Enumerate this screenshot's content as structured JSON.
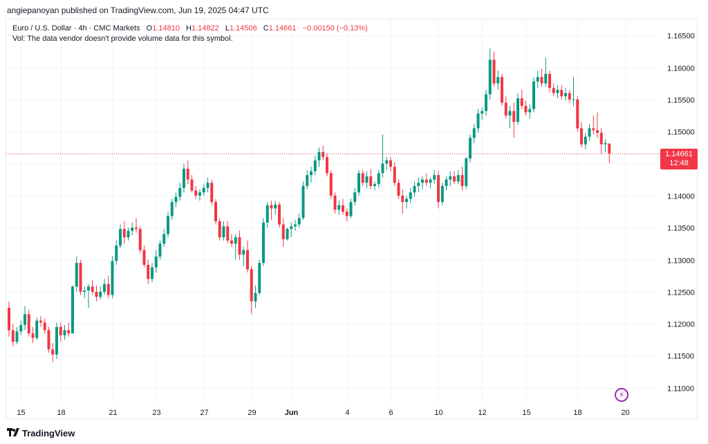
{
  "header": {
    "publisher_line": "angiepanoyan published on TradingView.com, Jun 19, 2025 04:47 UTC"
  },
  "legend": {
    "symbol": "Euro / U.S. Dollar · 4h · CMC Markets",
    "o_label": "O",
    "o_value": "1.14810",
    "h_label": "H",
    "h_value": "1.14822",
    "l_label": "L",
    "l_value": "1.14506",
    "c_label": "C",
    "c_value": "1.14661",
    "change": "−0.00150 (−0.13%)",
    "vol_line": "Vol: The data vendor doesn't provide volume data for this symbol."
  },
  "price_badge": {
    "price": "1.14661",
    "countdown": "12:48"
  },
  "brand": {
    "name": "TradingView"
  },
  "colors": {
    "up": "#089981",
    "down": "#f23645",
    "grid": "#f0f3fa",
    "accent_bolt": "#9c27b0"
  },
  "icons": {
    "bolt": "lightning-icon",
    "logo": "tradingview-logo-icon"
  },
  "chart_data": {
    "type": "candlestick",
    "timeframe": "4h",
    "current_price": 1.14661,
    "ylim": [
      1.1075,
      1.1675
    ],
    "y_ticks": [
      "1.16500",
      "1.16000",
      "1.15500",
      "1.15000",
      "1.14500",
      "1.14000",
      "1.13500",
      "1.13000",
      "1.12500",
      "1.12000",
      "1.11500",
      "1.11000"
    ],
    "x_ticks": [
      {
        "label": "15",
        "idx": 3
      },
      {
        "label": "18",
        "idx": 13
      },
      {
        "label": "21",
        "idx": 26
      },
      {
        "label": "23",
        "idx": 37
      },
      {
        "label": "27",
        "idx": 49
      },
      {
        "label": "29",
        "idx": 61
      },
      {
        "label": "Jun",
        "idx": 71
      },
      {
        "label": "4",
        "idx": 85
      },
      {
        "label": "6",
        "idx": 96
      },
      {
        "label": "10",
        "idx": 108
      },
      {
        "label": "12",
        "idx": 119
      },
      {
        "label": "15",
        "idx": 130
      },
      {
        "label": "18",
        "idx": 143
      },
      {
        "label": "20",
        "idx": 155
      }
    ],
    "grid": true,
    "candles": [
      [
        1.1225,
        1.1235,
        1.118,
        1.119
      ],
      [
        1.119,
        1.12,
        1.1165,
        1.1172
      ],
      [
        1.1172,
        1.1195,
        1.1168,
        1.1188
      ],
      [
        1.1188,
        1.1205,
        1.1182,
        1.1198
      ],
      [
        1.1198,
        1.1228,
        1.119,
        1.1215
      ],
      [
        1.1215,
        1.1222,
        1.118,
        1.1185
      ],
      [
        1.1185,
        1.1195,
        1.117,
        1.1178
      ],
      [
        1.1178,
        1.121,
        1.1175,
        1.1205
      ],
      [
        1.1205,
        1.1212,
        1.1195,
        1.1202
      ],
      [
        1.1202,
        1.1208,
        1.1185,
        1.119
      ],
      [
        1.119,
        1.1195,
        1.1155,
        1.116
      ],
      [
        1.116,
        1.117,
        1.114,
        1.1152
      ],
      [
        1.1152,
        1.1202,
        1.1145,
        1.1195
      ],
      [
        1.1195,
        1.1202,
        1.1172,
        1.1182
      ],
      [
        1.1182,
        1.1198,
        1.1175,
        1.119
      ],
      [
        1.119,
        1.1202,
        1.118,
        1.1185
      ],
      [
        1.1185,
        1.126,
        1.1185,
        1.1258
      ],
      [
        1.1258,
        1.1305,
        1.125,
        1.1295
      ],
      [
        1.1295,
        1.13,
        1.1245,
        1.125
      ],
      [
        1.125,
        1.1258,
        1.124,
        1.1252
      ],
      [
        1.1252,
        1.1262,
        1.1225,
        1.1258
      ],
      [
        1.1258,
        1.1268,
        1.1245,
        1.125
      ],
      [
        1.125,
        1.126,
        1.1235,
        1.1242
      ],
      [
        1.1242,
        1.1258,
        1.1238,
        1.125
      ],
      [
        1.125,
        1.127,
        1.1245,
        1.1262
      ],
      [
        1.1262,
        1.1275,
        1.124,
        1.1245
      ],
      [
        1.1245,
        1.1305,
        1.124,
        1.1298
      ],
      [
        1.1298,
        1.133,
        1.1292,
        1.1322
      ],
      [
        1.1322,
        1.1355,
        1.1318,
        1.1348
      ],
      [
        1.1348,
        1.136,
        1.1325,
        1.1335
      ],
      [
        1.1335,
        1.135,
        1.133,
        1.1345
      ],
      [
        1.1345,
        1.1358,
        1.1338,
        1.135
      ],
      [
        1.135,
        1.1365,
        1.1342,
        1.1348
      ],
      [
        1.1348,
        1.1352,
        1.131,
        1.1315
      ],
      [
        1.1315,
        1.1322,
        1.1288,
        1.1292
      ],
      [
        1.1292,
        1.13,
        1.1262,
        1.127
      ],
      [
        1.127,
        1.1295,
        1.1265,
        1.1288
      ],
      [
        1.1288,
        1.1315,
        1.128,
        1.1305
      ],
      [
        1.1305,
        1.133,
        1.13,
        1.1325
      ],
      [
        1.1325,
        1.1348,
        1.132,
        1.134
      ],
      [
        1.134,
        1.1375,
        1.1335,
        1.1368
      ],
      [
        1.1368,
        1.1395,
        1.1362,
        1.139
      ],
      [
        1.139,
        1.1405,
        1.1382,
        1.1398
      ],
      [
        1.1398,
        1.142,
        1.1392,
        1.1412
      ],
      [
        1.1412,
        1.145,
        1.1405,
        1.1442
      ],
      [
        1.1442,
        1.1455,
        1.1418,
        1.1425
      ],
      [
        1.1425,
        1.1432,
        1.1405,
        1.1408
      ],
      [
        1.1408,
        1.1415,
        1.1395,
        1.14
      ],
      [
        1.14,
        1.141,
        1.1392,
        1.1405
      ],
      [
        1.1405,
        1.1418,
        1.14,
        1.1412
      ],
      [
        1.1412,
        1.1428,
        1.1405,
        1.142
      ],
      [
        1.142,
        1.1425,
        1.1385,
        1.139
      ],
      [
        1.139,
        1.1395,
        1.1355,
        1.136
      ],
      [
        1.136,
        1.1365,
        1.133,
        1.1335
      ],
      [
        1.1335,
        1.136,
        1.133,
        1.1352
      ],
      [
        1.1352,
        1.136,
        1.1325,
        1.133
      ],
      [
        1.133,
        1.134,
        1.132,
        1.1325
      ],
      [
        1.1325,
        1.134,
        1.13,
        1.1335
      ],
      [
        1.1335,
        1.1345,
        1.13,
        1.1308
      ],
      [
        1.1308,
        1.132,
        1.129,
        1.1315
      ],
      [
        1.1315,
        1.133,
        1.128,
        1.1285
      ],
      [
        1.1285,
        1.129,
        1.1215,
        1.1235
      ],
      [
        1.1235,
        1.126,
        1.1225,
        1.1248
      ],
      [
        1.1248,
        1.13,
        1.1245,
        1.1295
      ],
      [
        1.1295,
        1.1365,
        1.129,
        1.1358
      ],
      [
        1.1358,
        1.139,
        1.135,
        1.1385
      ],
      [
        1.1385,
        1.1392,
        1.1362,
        1.138
      ],
      [
        1.138,
        1.1392,
        1.137,
        1.1386
      ],
      [
        1.1386,
        1.139,
        1.135,
        1.1355
      ],
      [
        1.1355,
        1.1365,
        1.132,
        1.1332
      ],
      [
        1.1332,
        1.135,
        1.133,
        1.1348
      ],
      [
        1.1348,
        1.1358,
        1.1335,
        1.1352
      ],
      [
        1.1352,
        1.1362,
        1.1345,
        1.1355
      ],
      [
        1.1355,
        1.1372,
        1.135,
        1.1365
      ],
      [
        1.1365,
        1.1422,
        1.1362,
        1.1415
      ],
      [
        1.1415,
        1.144,
        1.141,
        1.1432
      ],
      [
        1.1432,
        1.1445,
        1.142,
        1.1438
      ],
      [
        1.1438,
        1.1462,
        1.1432,
        1.1455
      ],
      [
        1.1455,
        1.1475,
        1.1445,
        1.1468
      ],
      [
        1.1468,
        1.1478,
        1.1455,
        1.146
      ],
      [
        1.146,
        1.1465,
        1.143,
        1.1435
      ],
      [
        1.1435,
        1.144,
        1.1395,
        1.14
      ],
      [
        1.14,
        1.1405,
        1.1372,
        1.1378
      ],
      [
        1.1378,
        1.1392,
        1.137,
        1.1385
      ],
      [
        1.1385,
        1.1395,
        1.137,
        1.1375
      ],
      [
        1.1375,
        1.138,
        1.136,
        1.1368
      ],
      [
        1.1368,
        1.1395,
        1.1365,
        1.139
      ],
      [
        1.139,
        1.1412,
        1.1385,
        1.1405
      ],
      [
        1.1405,
        1.144,
        1.14,
        1.1435
      ],
      [
        1.1435,
        1.144,
        1.1415,
        1.142
      ],
      [
        1.142,
        1.1438,
        1.1412,
        1.143
      ],
      [
        1.143,
        1.1442,
        1.141,
        1.1415
      ],
      [
        1.1415,
        1.1422,
        1.1408,
        1.1418
      ],
      [
        1.1418,
        1.144,
        1.1412,
        1.1435
      ],
      [
        1.1435,
        1.1495,
        1.1428,
        1.145
      ],
      [
        1.145,
        1.146,
        1.144,
        1.1455
      ],
      [
        1.1455,
        1.146,
        1.1438,
        1.1445
      ],
      [
        1.1445,
        1.1452,
        1.1415,
        1.142
      ],
      [
        1.142,
        1.1425,
        1.1395,
        1.14
      ],
      [
        1.14,
        1.141,
        1.1372,
        1.139
      ],
      [
        1.139,
        1.14,
        1.138,
        1.1395
      ],
      [
        1.1395,
        1.1412,
        1.1388,
        1.1405
      ],
      [
        1.1405,
        1.1422,
        1.1398,
        1.1415
      ],
      [
        1.1415,
        1.1428,
        1.1405,
        1.142
      ],
      [
        1.142,
        1.143,
        1.141,
        1.1425
      ],
      [
        1.1425,
        1.1435,
        1.1415,
        1.142
      ],
      [
        1.142,
        1.1428,
        1.1412,
        1.1425
      ],
      [
        1.1425,
        1.144,
        1.1418,
        1.1432
      ],
      [
        1.1432,
        1.1438,
        1.138,
        1.139
      ],
      [
        1.139,
        1.142,
        1.1385,
        1.1415
      ],
      [
        1.1415,
        1.143,
        1.1408,
        1.1425
      ],
      [
        1.1425,
        1.1438,
        1.1415,
        1.143
      ],
      [
        1.143,
        1.1438,
        1.1418,
        1.1422
      ],
      [
        1.1422,
        1.144,
        1.1418,
        1.1432
      ],
      [
        1.1432,
        1.1445,
        1.1408,
        1.1415
      ],
      [
        1.1415,
        1.146,
        1.141,
        1.1458
      ],
      [
        1.1458,
        1.1495,
        1.1452,
        1.149
      ],
      [
        1.149,
        1.1512,
        1.1482,
        1.1505
      ],
      [
        1.1505,
        1.1535,
        1.1498,
        1.1528
      ],
      [
        1.1528,
        1.1538,
        1.1518,
        1.1532
      ],
      [
        1.1532,
        1.1565,
        1.1525,
        1.1558
      ],
      [
        1.1558,
        1.163,
        1.155,
        1.1612
      ],
      [
        1.1612,
        1.1625,
        1.157,
        1.1575
      ],
      [
        1.1575,
        1.1595,
        1.1565,
        1.1585
      ],
      [
        1.1585,
        1.159,
        1.154,
        1.1545
      ],
      [
        1.1545,
        1.1555,
        1.152,
        1.1525
      ],
      [
        1.1525,
        1.154,
        1.1505,
        1.1532
      ],
      [
        1.1532,
        1.1545,
        1.149,
        1.1515
      ],
      [
        1.1515,
        1.156,
        1.151,
        1.1552
      ],
      [
        1.1552,
        1.1565,
        1.1535,
        1.154
      ],
      [
        1.154,
        1.1548,
        1.1525,
        1.153
      ],
      [
        1.153,
        1.1542,
        1.152,
        1.1535
      ],
      [
        1.1535,
        1.1585,
        1.153,
        1.1578
      ],
      [
        1.1578,
        1.1595,
        1.1568,
        1.1585
      ],
      [
        1.1585,
        1.1598,
        1.157,
        1.1575
      ],
      [
        1.1575,
        1.1615,
        1.157,
        1.159
      ],
      [
        1.159,
        1.1595,
        1.1562,
        1.1568
      ],
      [
        1.1568,
        1.1575,
        1.1555,
        1.156
      ],
      [
        1.156,
        1.1572,
        1.1552,
        1.1565
      ],
      [
        1.1565,
        1.1572,
        1.155,
        1.1555
      ],
      [
        1.1555,
        1.1568,
        1.1548,
        1.156
      ],
      [
        1.156,
        1.1565,
        1.1545,
        1.155
      ],
      [
        1.155,
        1.1585,
        1.154,
        1.155
      ],
      [
        1.155,
        1.1555,
        1.15,
        1.1505
      ],
      [
        1.1505,
        1.1515,
        1.1475,
        1.148
      ],
      [
        1.148,
        1.1498,
        1.1472,
        1.1492
      ],
      [
        1.1492,
        1.1512,
        1.1485,
        1.1505
      ],
      [
        1.1505,
        1.1525,
        1.1495,
        1.1502
      ],
      [
        1.1502,
        1.153,
        1.149,
        1.1498
      ],
      [
        1.1498,
        1.1505,
        1.1465,
        1.148
      ],
      [
        1.148,
        1.1488,
        1.1468,
        1.1482
      ],
      [
        1.1481,
        1.1482,
        1.1451,
        1.1466
      ]
    ]
  }
}
